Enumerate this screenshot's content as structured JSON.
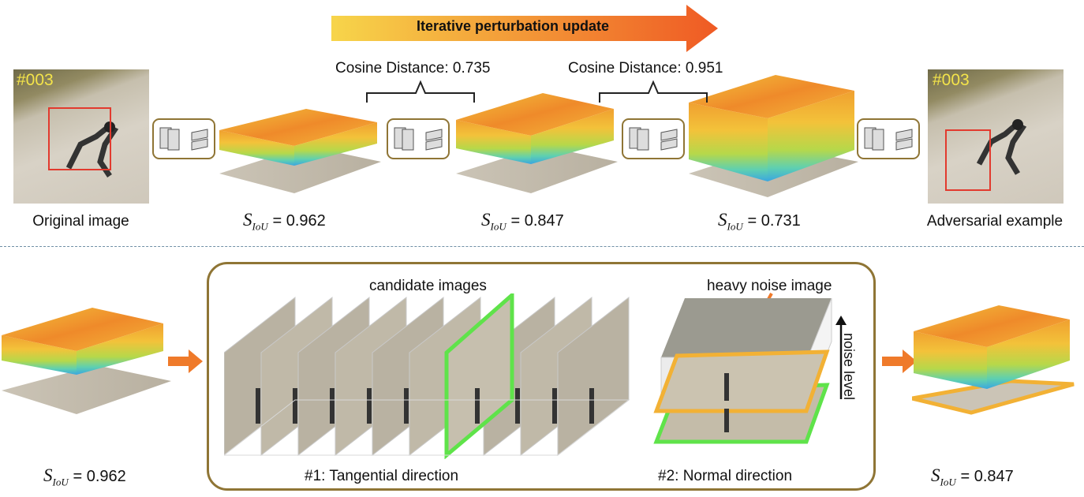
{
  "banner": {
    "label": "Iterative perturbation update",
    "color_start": "#f7d54a",
    "color_end": "#ef5a24"
  },
  "top": {
    "original": {
      "tag": "#003",
      "caption": "Original image"
    },
    "adversarial": {
      "tag": "#003",
      "caption": "Adversarial example"
    },
    "distances": [
      {
        "label": "Cosine Distance: 0.735"
      },
      {
        "label": "Cosine Distance: 0.951"
      }
    ],
    "scores": [
      {
        "symbol": "S",
        "sub": "IoU",
        "value": "= 0.962"
      },
      {
        "symbol": "S",
        "sub": "IoU",
        "value": "= 0.847"
      },
      {
        "symbol": "S",
        "sub": "IoU",
        "value": "= 0.731"
      }
    ]
  },
  "bottom": {
    "left_score": {
      "symbol": "S",
      "sub": "IoU",
      "value": "= 0.962"
    },
    "right_score": {
      "symbol": "S",
      "sub": "IoU",
      "value": "= 0.847"
    },
    "candidate_label": "candidate images",
    "tangential_label": "#1: Tangential direction",
    "heavy_noise_label": "heavy noise image",
    "noise_level_label": "noise level",
    "normal_label": "#2: Normal direction"
  },
  "colors": {
    "frame": "#8f7535",
    "highlight_green": "#5fe34a",
    "highlight_orange": "#f2b135",
    "arrow_orange": "#ef7a2a",
    "red_box": "#e23a2e"
  }
}
